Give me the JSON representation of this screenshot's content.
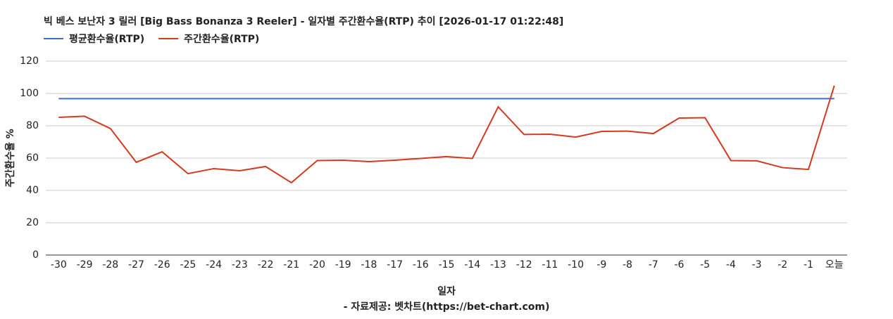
{
  "chart_data": {
    "type": "line",
    "title": "빅 베스 보난자 3 릴러 [Big Bass Bonanza 3 Reeler] - 일자별 주간환수율(RTP) 추이 [2026-01-17 01:22:48]",
    "x_label": "일자",
    "y_label": "주간환수율 %",
    "source": "- 자료제공: 벳차트(https://bet-chart.com)",
    "categories": [
      "-30",
      "-29",
      "-28",
      "-27",
      "-26",
      "-25",
      "-24",
      "-23",
      "-22",
      "-21",
      "-20",
      "-19",
      "-18",
      "-17",
      "-16",
      "-15",
      "-14",
      "-13",
      "-12",
      "-11",
      "-10",
      "-9",
      "-8",
      "-7",
      "-6",
      "-5",
      "-4",
      "-3",
      "-2",
      "-1",
      "오늘"
    ],
    "series": [
      {
        "name": "평균환수율(RTP)",
        "color": "#3b6fc4",
        "values": [
          96.8,
          96.8,
          96.8,
          96.8,
          96.8,
          96.8,
          96.8,
          96.8,
          96.8,
          96.8,
          96.8,
          96.8,
          96.8,
          96.8,
          96.8,
          96.8,
          96.8,
          96.8,
          96.8,
          96.8,
          96.8,
          96.8,
          96.8,
          96.8,
          96.8,
          96.8,
          96.8,
          96.8,
          96.8,
          96.8,
          96.8
        ]
      },
      {
        "name": "주간환수율(RTP)",
        "color": "#d33a1f",
        "values": [
          85.2,
          85.9,
          78.3,
          57.4,
          63.9,
          50.4,
          53.5,
          52.2,
          54.8,
          44.8,
          58.5,
          58.7,
          57.8,
          58.7,
          59.8,
          60.9,
          59.8,
          91.7,
          74.6,
          74.8,
          73.0,
          76.5,
          76.7,
          75.2,
          84.8,
          85.0,
          58.5,
          58.3,
          54.1,
          53.0,
          104.8
        ]
      }
    ],
    "ylim": [
      0,
      120
    ],
    "yticks": [
      0,
      20,
      40,
      60,
      80,
      100,
      120
    ],
    "grid": true
  }
}
